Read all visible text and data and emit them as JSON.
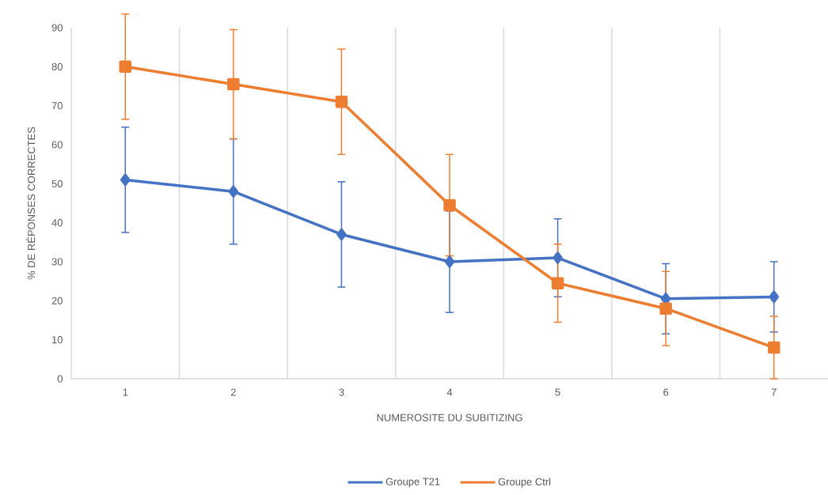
{
  "chart_data": {
    "type": "line",
    "xlabel": "NUMEROSITE DU SUBITIZING",
    "ylabel": "% DE RÉPONSES CORRECTES",
    "categories": [
      "1",
      "2",
      "3",
      "4",
      "5",
      "6",
      "7"
    ],
    "series": [
      {
        "name": "Groupe T21",
        "color": "#4472c4",
        "marker": "diamond",
        "values": [
          51,
          48,
          37,
          30,
          31,
          20.5,
          21
        ],
        "errors": [
          13.5,
          13.5,
          13.5,
          13,
          10,
          9,
          9
        ]
      },
      {
        "name": "Groupe Ctrl",
        "color": "#ed7d31",
        "marker": "square",
        "values": [
          80,
          75.5,
          71,
          44.5,
          24.5,
          18,
          8
        ],
        "errors": [
          13.5,
          14,
          13.5,
          13,
          10,
          9.5,
          8
        ]
      }
    ],
    "ylim": [
      0,
      90
    ],
    "yticks": [
      0,
      10,
      20,
      30,
      40,
      50,
      60,
      70,
      80,
      90
    ],
    "grid": "x",
    "legend": "bottom"
  }
}
